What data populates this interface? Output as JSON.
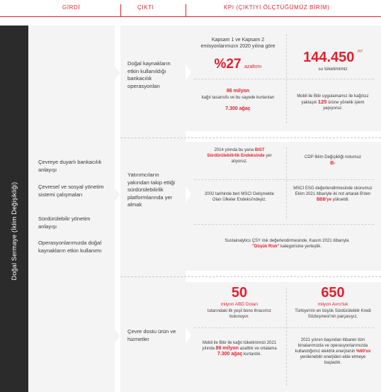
{
  "header": {
    "girdi": "GİRDİ",
    "cikti": "ÇIKTI",
    "kpi": "KPI (ÇIKTIYI ÖLÇTÜĞÜMÜZ BİRİM)"
  },
  "sidebar": {
    "title": "Doğal Sermaye (İklim Değişikliği)"
  },
  "inputs": [
    "Çevreye duyarlı bankacılık anlayışı",
    "Çevresel ve sosyal yönetim sistemi çalışmaları",
    "Sürdürülebilir yönetim anlayışı",
    "Operasyonlarımızda doğal kaynakların etkin kullanımı"
  ],
  "outputs": [
    "Doğal kaynakların etkin kullanıldığı bankacılık operasyonları",
    "Yatırımcıların yakından takip ettiği sürdürülebilirlik platformlarında yer almak",
    "Çevre dostu ürün ve hizmetler"
  ],
  "kpi1": {
    "scope_text": "Kapsam 1 ve Kapsam 2 emisyonlarımızın 2020 yılına göre",
    "scope_value": "%27",
    "scope_suffix": "azaltımı",
    "water_value": "144.450",
    "water_unit": "m³",
    "water_suffix": "su tüketimimiz",
    "paper_value": "86 milyon",
    "paper_text": "kağıt tasarrufu ve bu sayede kurtarılan",
    "paper_trees": "7.300 ağaç",
    "mobile_text_a": "Mobil ile Bitir uygulamamız ile kağıtsız yaklaşık",
    "mobile_value": "125",
    "mobile_text_b": "ürüne yönelik işlem yapıyoruz."
  },
  "kpi2": {
    "bist_text_a": "2014 yılında bu yana",
    "bist_value": "BIST Sürdürülebilirlik Endeksinde",
    "bist_text_b": "yer alıyoruz.",
    "cdp_text": "CDP İklim Değişikliği notumuz",
    "cdp_value": "B-",
    "msci1_text": "2002 tarihinde beri MSCI Gelişmekte Olan Ülkeler Endeksi'ndeyiz.",
    "msci2_text": "MSCI ESG değerlendirmesinde skorumuz Ekim 2021 itibariyle iki not artarak B'den",
    "msci2_value": "BBB'ye",
    "msci2_suffix": "yükseldi.",
    "sust_text": "Sustainalytics ÇSY risk değerlendirmesinde, Kasım 2021 itibarıyla",
    "sust_value": "\"Düşük Risk\"",
    "sust_suffix": "kategorisine yerleştik."
  },
  "kpi3": {
    "bond_value": "50",
    "bond_unit": "milyon ABD Doları",
    "bond_text": "tutarındaki ilk yeşil bono ihracımız bulunuyor.",
    "loan_value": "650",
    "loan_unit": "milyon Avro'luk",
    "loan_text": "Türkiye'nin en büyük Sürdürülebilir Kredi Sözleşmesi'nin parçasıyız.",
    "mobile_text_a": "Mobil ile Bitir ile kağıt tüketimimizi 2021 yılında",
    "mobile_value": "86 milyon",
    "mobile_text_b": "azalttık ve ortalama",
    "mobile_trees": "7.300 ağaç",
    "mobile_text_c": "kurtardık.",
    "energy_text_a": "2021 yılının başından itibaren tüm binalarımızda ve operasyonlarımızda kullandığımız elektrik enerjisinin",
    "energy_value": "%60'ını",
    "energy_text_b": "yenilenebilir enerjiden elde etmeye başladık."
  }
}
